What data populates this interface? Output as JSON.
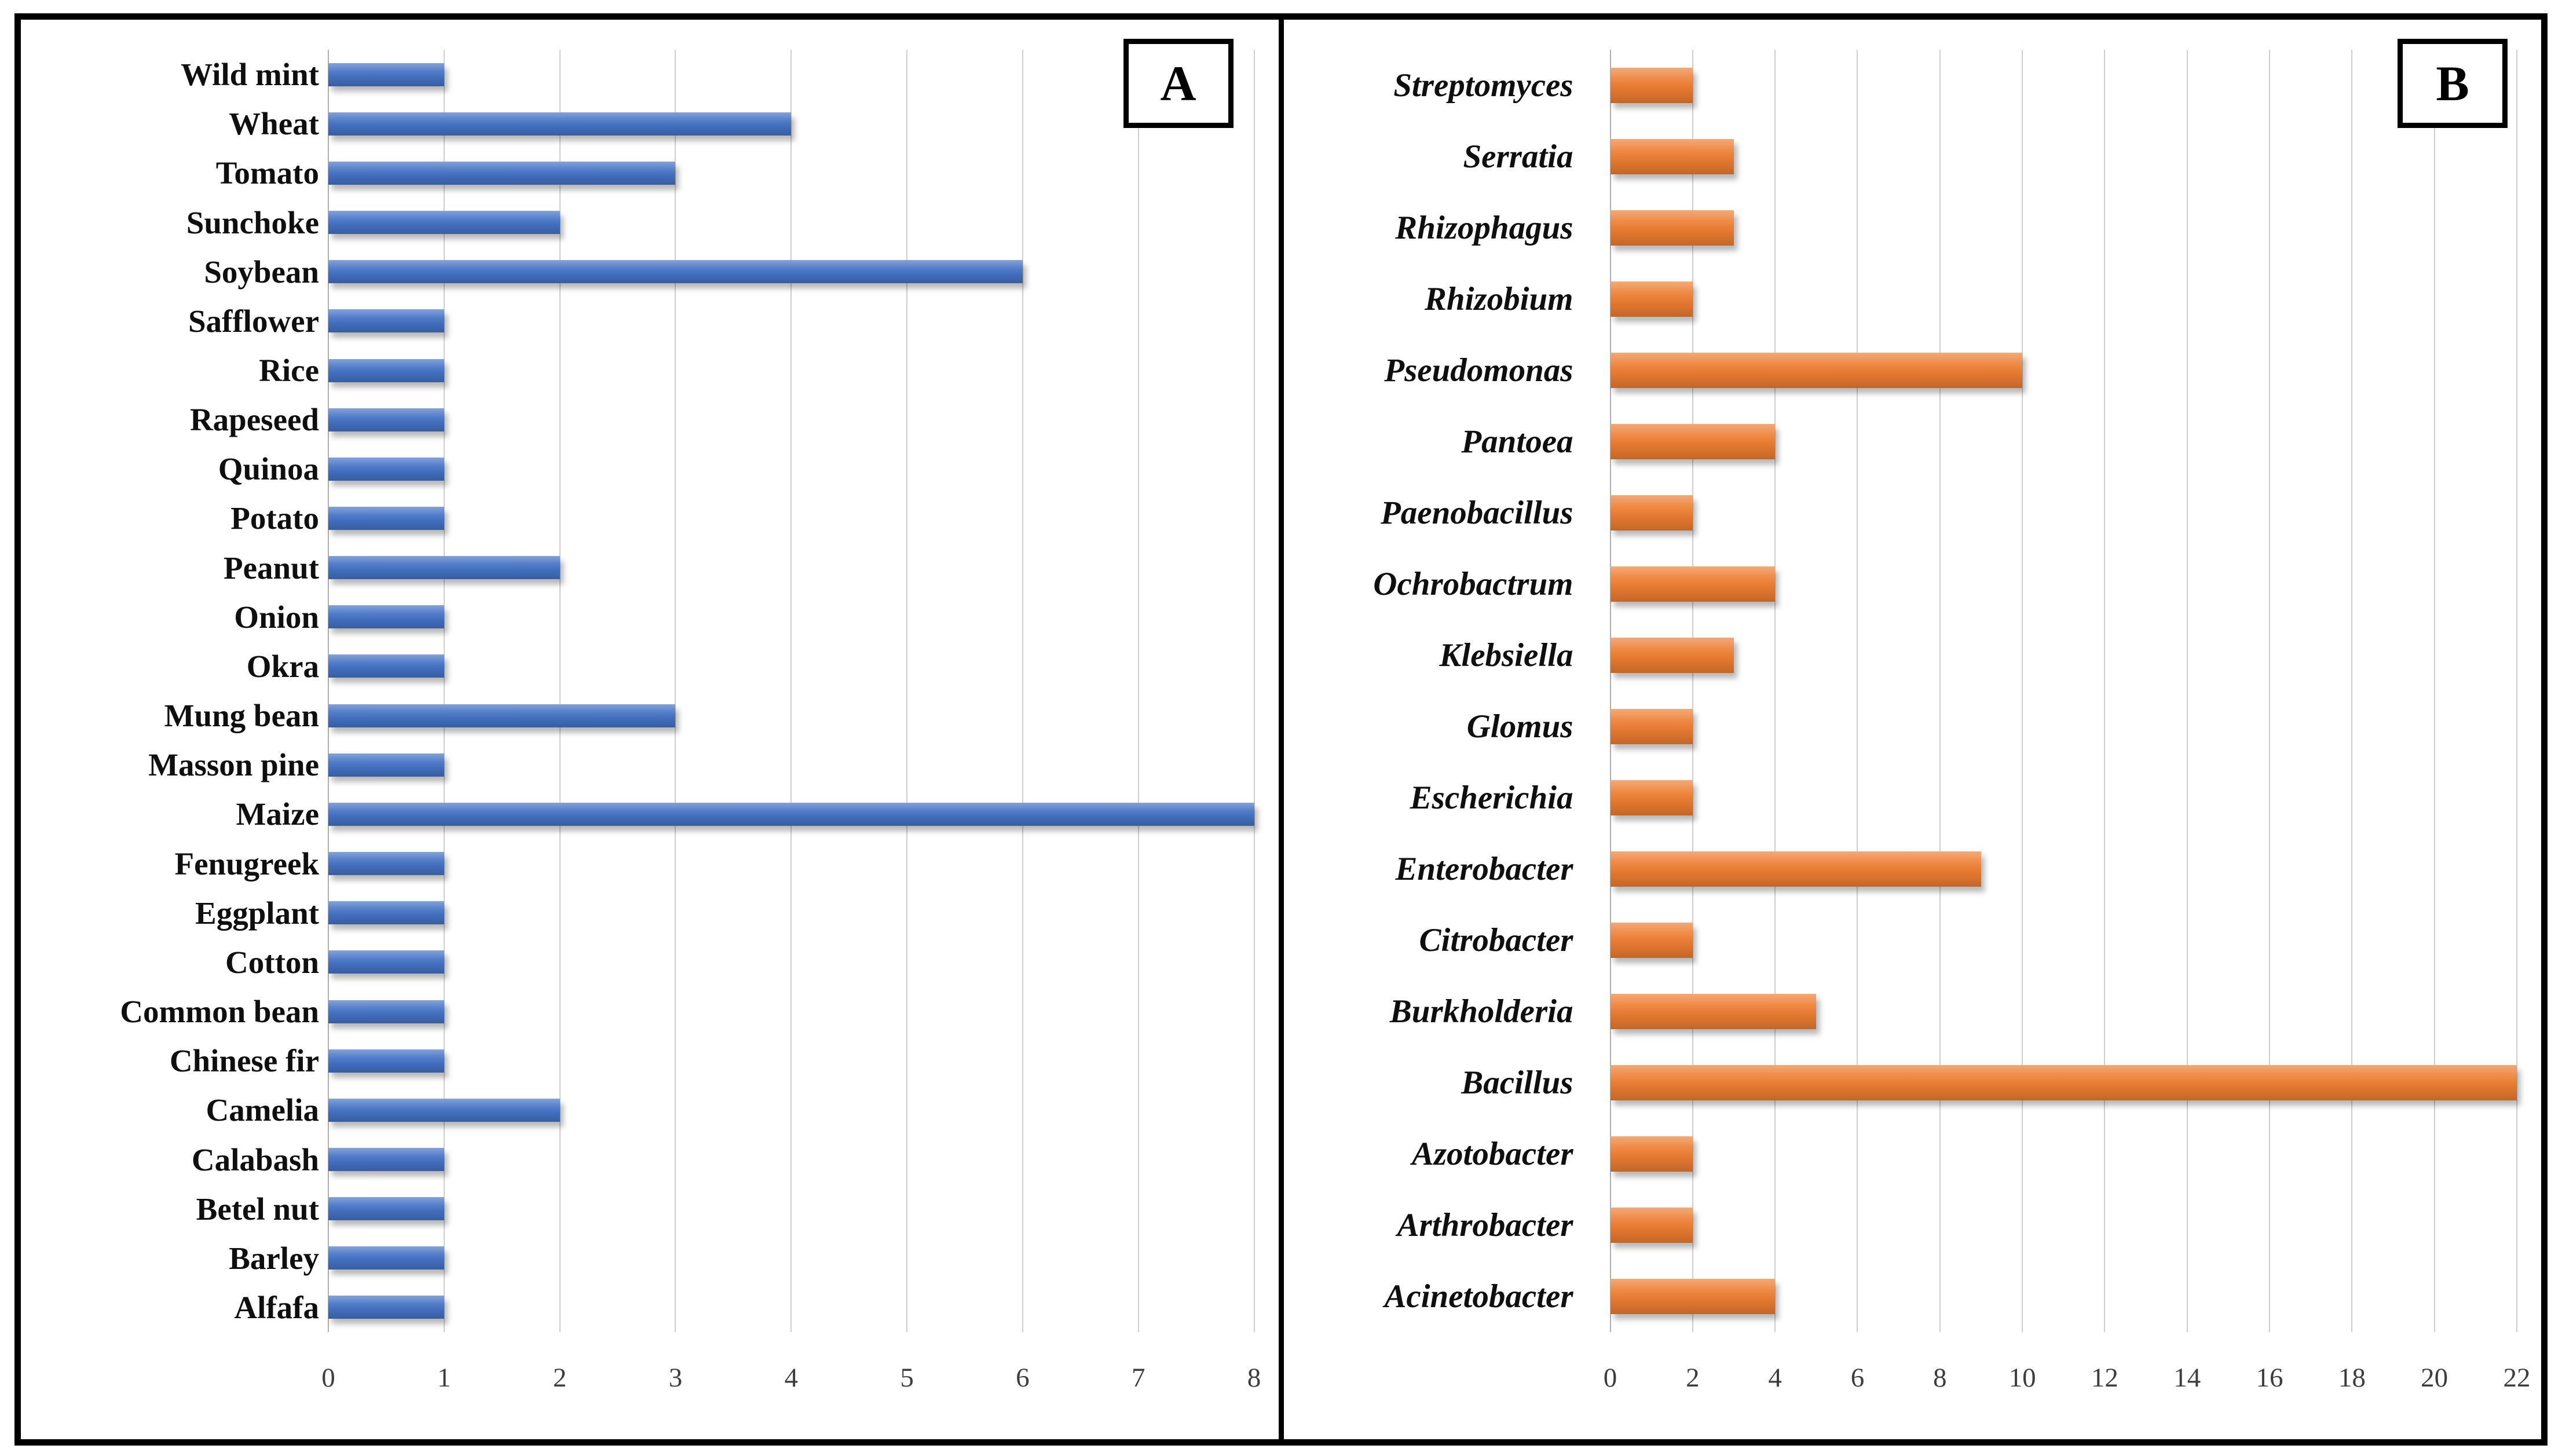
{
  "figure": {
    "background": "#ffffff",
    "frame_color": "#000000",
    "gridline_color": "#cfcfcf",
    "tick_color": "#3d3d3d"
  },
  "chart_data": [
    {
      "type": "bar",
      "orientation": "horizontal",
      "panel_label": "A",
      "bar_color": "#4472C4",
      "categories": [
        "Wild mint",
        "Wheat",
        "Tomato",
        "Sunchoke",
        "Soybean",
        "Safflower",
        "Rice",
        "Rapeseed",
        "Quinoa",
        "Potato",
        "Peanut",
        "Onion",
        "Okra",
        "Mung bean",
        "Masson pine",
        "Maize",
        "Fenugreek",
        "Eggplant",
        "Cotton",
        "Common bean",
        "Chinese fir",
        "Camelia",
        "Calabash",
        "Betel nut",
        "Barley",
        "Alfafa"
      ],
      "values": [
        1,
        4,
        3,
        2,
        6,
        1,
        1,
        1,
        1,
        1,
        2,
        1,
        1,
        3,
        1,
        8,
        1,
        1,
        1,
        1,
        1,
        2,
        1,
        1,
        1,
        1
      ],
      "title": "",
      "xlabel": "",
      "ylabel": "",
      "xlim": [
        0,
        8
      ],
      "tick_step": 1,
      "ticks": [
        0,
        1,
        2,
        3,
        4,
        5,
        6,
        7,
        8
      ],
      "grid": true,
      "legend": "none",
      "label_style": "bold"
    },
    {
      "type": "bar",
      "orientation": "horizontal",
      "panel_label": "B",
      "bar_color": "#ED7D31",
      "categories": [
        "Streptomyces",
        "Serratia",
        "Rhizophagus",
        "Rhizobium",
        "Pseudomonas",
        "Pantoea",
        "Paenobacillus",
        "Ochrobactrum",
        "Klebsiella",
        "Glomus",
        "Escherichia",
        "Enterobacter",
        "Citrobacter",
        "Burkholderia",
        "Bacillus",
        "Azotobacter",
        "Arthrobacter",
        "Acinetobacter"
      ],
      "values": [
        2,
        3,
        3,
        2,
        10,
        4,
        2,
        4,
        3,
        2,
        2,
        9,
        2,
        5,
        22,
        2,
        2,
        4
      ],
      "title": "",
      "xlabel": "",
      "ylabel": "",
      "xlim": [
        0,
        22
      ],
      "tick_step": 2,
      "ticks": [
        0,
        2,
        4,
        6,
        8,
        10,
        12,
        14,
        16,
        18,
        20,
        22
      ],
      "grid": true,
      "legend": "none",
      "label_style": "bold-italic"
    }
  ]
}
